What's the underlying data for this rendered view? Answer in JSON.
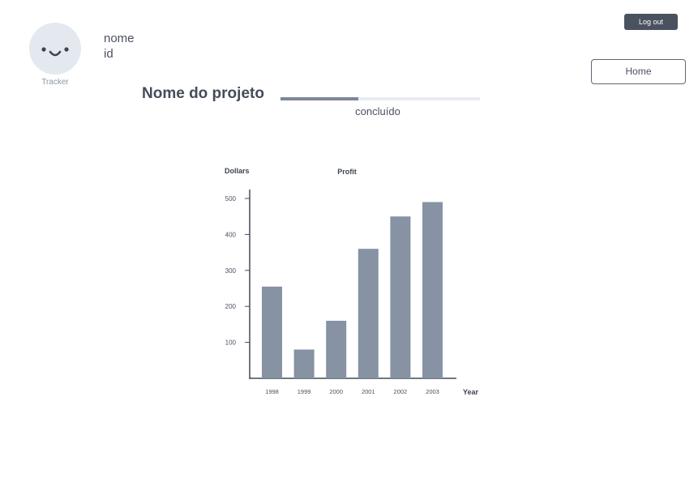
{
  "user": {
    "avatar_caption": "Tracker",
    "name": "nome",
    "id": "id"
  },
  "buttons": {
    "logout": "Log out",
    "home": "Home"
  },
  "project": {
    "title": "Nome do projeto",
    "progress_fraction": 0.39,
    "progress_label": "concluído"
  },
  "colors": {
    "bar": "#8792a4",
    "progress_fill": "#7d8799",
    "progress_track": "#e8ebf1",
    "axis": "#444b57"
  },
  "chart_data": {
    "type": "bar",
    "title": "Profit",
    "ylabel": "Dollars",
    "xlabel": "Year",
    "categories": [
      "1998",
      "1999",
      "2000",
      "2001",
      "2002",
      "2003"
    ],
    "values": [
      255,
      80,
      160,
      360,
      450,
      490
    ],
    "yticks": [
      100,
      200,
      300,
      400,
      500
    ],
    "ylim": [
      0,
      540
    ],
    "grid": false,
    "legend": "none"
  }
}
